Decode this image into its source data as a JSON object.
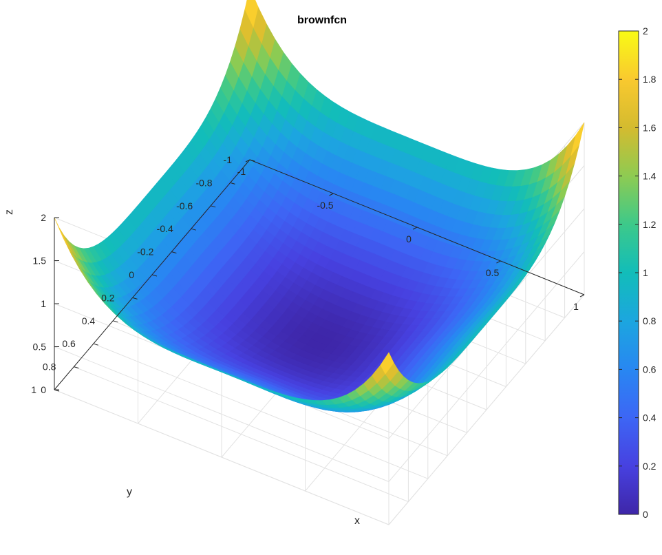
{
  "chart_data": {
    "type": "surface",
    "title": "brownfcn",
    "xlabel": "x",
    "ylabel": "y",
    "zlabel": "z",
    "xlim": [
      -1,
      1
    ],
    "ylim": [
      -1,
      1
    ],
    "zlim": [
      0,
      2
    ],
    "x_ticks": [
      "-1",
      "-0.5",
      "0",
      "0.5",
      "1"
    ],
    "y_ticks": [
      "1",
      "0.8",
      "0.6",
      "0.4",
      "0.2",
      "0",
      "-0.2",
      "-0.4",
      "-0.6",
      "-0.8",
      "-1"
    ],
    "z_ticks": [
      "0",
      "0.5",
      "1",
      "1.5",
      "2"
    ],
    "function": "brown",
    "samples": [
      {
        "x": 0,
        "y": 0,
        "z": 0
      },
      {
        "x": 1,
        "y": 1,
        "z": 2
      },
      {
        "x": -1,
        "y": 1,
        "z": 2
      },
      {
        "x": 1,
        "y": -1,
        "z": 2
      },
      {
        "x": -1,
        "y": -1,
        "z": 2
      },
      {
        "x": 1,
        "y": 0,
        "z": 1
      },
      {
        "x": 0,
        "y": 1,
        "z": 1
      },
      {
        "x": 0.5,
        "y": 0.5,
        "z": 0.132
      }
    ],
    "colorbar": {
      "ticks": [
        "0",
        "0.2",
        "0.4",
        "0.6",
        "0.8",
        "1",
        "1.2",
        "1.4",
        "1.6",
        "1.8",
        "2"
      ],
      "range": [
        0,
        2
      ],
      "colormap": "parula"
    },
    "grid": true,
    "colors": {
      "low": "#3e26a8",
      "mid": "#12bdb9",
      "high": "#f9fb15"
    }
  }
}
